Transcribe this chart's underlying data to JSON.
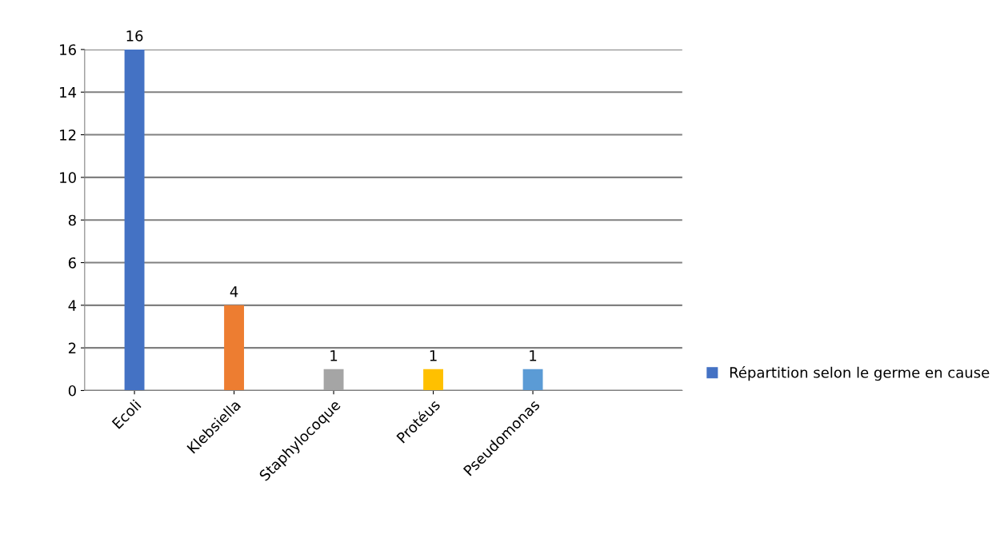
{
  "chart_data": {
    "type": "bar",
    "categories": [
      "Ecoli",
      "Klebsiella",
      "Staphylocoque",
      "Protéus",
      "Pseudomonas"
    ],
    "series": [
      {
        "name": "Répartition selon le germe en cause",
        "color": "#4472c4",
        "colors": [
          "#4472c4",
          "#ed7d31",
          "#a5a5a5",
          "#ffc000",
          "#5b9bd5"
        ],
        "values": [
          16,
          4,
          1,
          1,
          1
        ]
      }
    ],
    "ylim": [
      0,
      16
    ],
    "yticks": [
      0,
      2,
      4,
      6,
      8,
      10,
      12,
      14,
      16
    ],
    "grid": "y",
    "legend": "right",
    "data_labels": true
  }
}
